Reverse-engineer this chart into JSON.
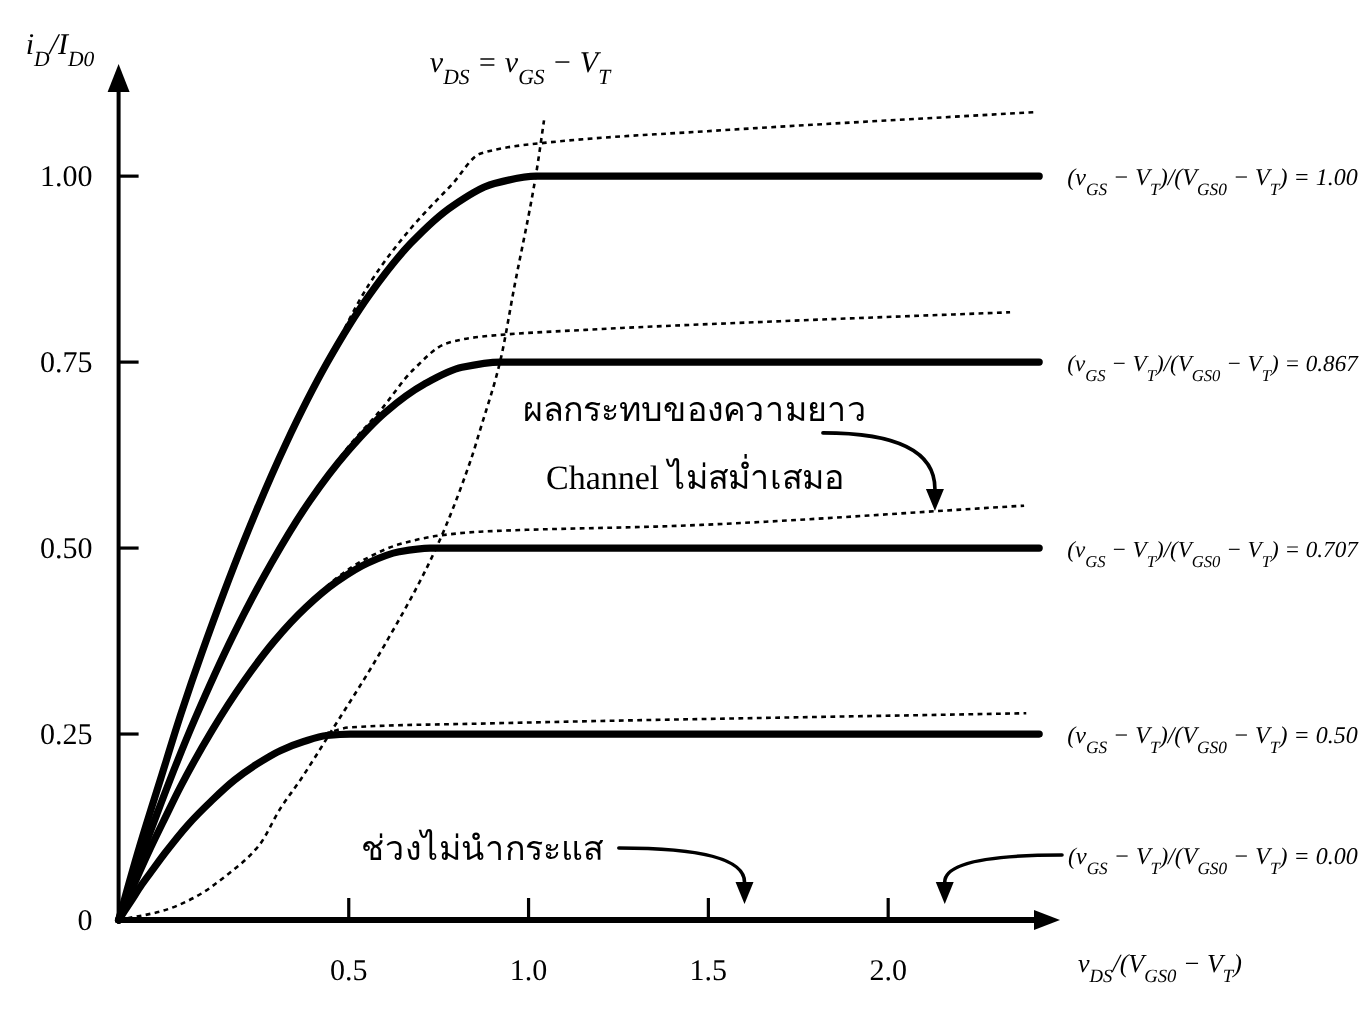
{
  "chart_data": {
    "type": "line",
    "xlabel": "v$_{DS}$/(V$_{GS0}$ − V$_{T}$)",
    "ylabel": "i$_{D}$/I$_{D0}$",
    "xlim": [
      -0.14,
      2.45
    ],
    "ylim": [
      0,
      1.14
    ],
    "xticks": [
      0.5,
      {
        "value": 1,
        "label": "1.0"
      },
      1.5,
      {
        "value": 2,
        "label": "2.0"
      }
    ],
    "yticks": [
      0,
      0.25,
      {
        "value": 0.5,
        "label": "0.50"
      },
      0.75,
      {
        "value": 1,
        "label": "1.00"
      }
    ],
    "series": [
      {
        "name": "(v$_{GS}$ − V$_{T}$)/(V$_{GS0}$ − V$_{T}$) = 1.00",
        "color": "#000000",
        "line_style": "solid",
        "x": [
          -0.14,
          -0.082,
          -0.023,
          0.034,
          0.092,
          0.209,
          0.325,
          0.441,
          0.557,
          0.673,
          0.789,
          0.905,
          1.021,
          2.42
        ],
        "values": [
          0,
          0.098,
          0.19,
          0.278,
          0.36,
          0.51,
          0.64,
          0.75,
          0.84,
          0.91,
          0.96,
          0.99,
          1,
          1
        ]
      },
      {
        "name": "(v$_{GS}$ − V$_{T}$)/(V$_{GS0}$ − V$_{T}$) = 0.867",
        "color": "#000000",
        "line_style": "solid",
        "x": [
          -0.14,
          -0.087,
          -0.033,
          0.019,
          0.072,
          0.179,
          0.285,
          0.391,
          0.497,
          0.603,
          0.709,
          0.815,
          0.921,
          2.42
        ],
        "values": [
          0,
          0.073,
          0.143,
          0.208,
          0.27,
          0.383,
          0.48,
          0.563,
          0.63,
          0.683,
          0.72,
          0.743,
          0.75,
          0.75
        ]
      },
      {
        "name": "(v$_{GS}$ − V$_{T}$)/(V$_{GS0}$ − V$_{T}$) = 0.707",
        "color": "#000000",
        "line_style": "solid",
        "x": [
          -0.14,
          -0.096,
          -0.053,
          -0.009,
          0.033,
          0.12,
          0.207,
          0.293,
          0.38,
          0.467,
          0.553,
          0.64,
          0.726,
          2.42
        ],
        "values": [
          0,
          0.049,
          0.095,
          0.139,
          0.18,
          0.255,
          0.32,
          0.375,
          0.42,
          0.455,
          0.48,
          0.495,
          0.5,
          0.5
        ]
      },
      {
        "name": "(v$_{GS}$ − V$_{T}$)/(V$_{GS0}$ − V$_{T}$) = 0.50",
        "color": "#000000",
        "line_style": "solid",
        "x": [
          -0.14,
          -0.107,
          -0.075,
          -0.043,
          -0.011,
          0.053,
          0.118,
          0.182,
          0.246,
          0.311,
          0.375,
          0.439,
          0.504,
          2.42
        ],
        "values": [
          0,
          0.024,
          0.048,
          0.069,
          0.09,
          0.128,
          0.16,
          0.188,
          0.21,
          0.228,
          0.24,
          0.248,
          0.25,
          0.25
        ]
      },
      {
        "color": "#000000",
        "line_style": "dotted",
        "x": [
          -0.14,
          -0.082,
          -0.023,
          0.034,
          0.092,
          0.209,
          0.325,
          0.441,
          0.557,
          0.673,
          0.789,
          0.865,
          1.049,
          1.516,
          2.406
        ],
        "values": [
          0,
          0.098,
          0.19,
          0.278,
          0.36,
          0.51,
          0.64,
          0.75,
          0.855,
          0.93,
          0.99,
          1.03,
          1.045,
          1.061,
          1.086
        ]
      },
      {
        "color": "#000000",
        "line_style": "dotted",
        "x": [
          -0.14,
          -0.033,
          0.072,
          0.179,
          0.285,
          0.391,
          0.497,
          0.588,
          0.68,
          0.771,
          0.865,
          1.143,
          1.7,
          2.339
        ],
        "values": [
          0,
          0.143,
          0.27,
          0.383,
          0.48,
          0.563,
          0.635,
          0.685,
          0.74,
          0.775,
          0.784,
          0.793,
          0.805,
          0.817
        ]
      },
      {
        "color": "#000000",
        "line_style": "dotted",
        "x": [
          -0.14,
          -0.053,
          0.033,
          0.12,
          0.207,
          0.293,
          0.38,
          0.467,
          0.553,
          0.64,
          0.754,
          0.865,
          1.421,
          2.378
        ],
        "values": [
          0,
          0.095,
          0.18,
          0.255,
          0.32,
          0.375,
          0.42,
          0.46,
          0.487,
          0.505,
          0.517,
          0.522,
          0.53,
          0.557
        ]
      },
      {
        "color": "#000000",
        "line_style": "dotted",
        "x": [
          -0.14,
          -0.075,
          -0.011,
          0.053,
          0.118,
          0.182,
          0.246,
          0.311,
          0.375,
          0.439,
          0.504,
          0.865,
          2.384
        ],
        "values": [
          0,
          0.048,
          0.09,
          0.128,
          0.16,
          0.188,
          0.21,
          0.228,
          0.24,
          0.251,
          0.259,
          0.264,
          0.278
        ]
      },
      {
        "name": "v$_{DS}$ = v$_{GS}$ − V$_{T}$",
        "color": "#000000",
        "line_style": "dotted",
        "x": [
          -0.14,
          -0.02,
          0.07,
          0.16,
          0.25,
          0.31,
          0.365,
          0.448,
          0.6,
          0.745,
          0.839,
          0.866,
          0.922,
          0.96,
          1.021,
          1.043
        ],
        "values": [
          0,
          0.012,
          0.03,
          0.06,
          0.1,
          0.15,
          0.188,
          0.251,
          0.37,
          0.502,
          0.618,
          0.66,
          0.753,
          0.85,
          1.003,
          1.075
        ]
      }
    ],
    "annotations": [
      {
        "text": "ผลกระทบของความยาว\nChannel ไม่สม่ำเสมอ",
        "x": 2.13,
        "y": 0.55
      },
      "ช่วงไม่นำกระแส",
      "(v$_{GS}$ − V$_{T}$)/(V$_{GS0}$ − V$_{T}$) = 0.00"
    ]
  }
}
